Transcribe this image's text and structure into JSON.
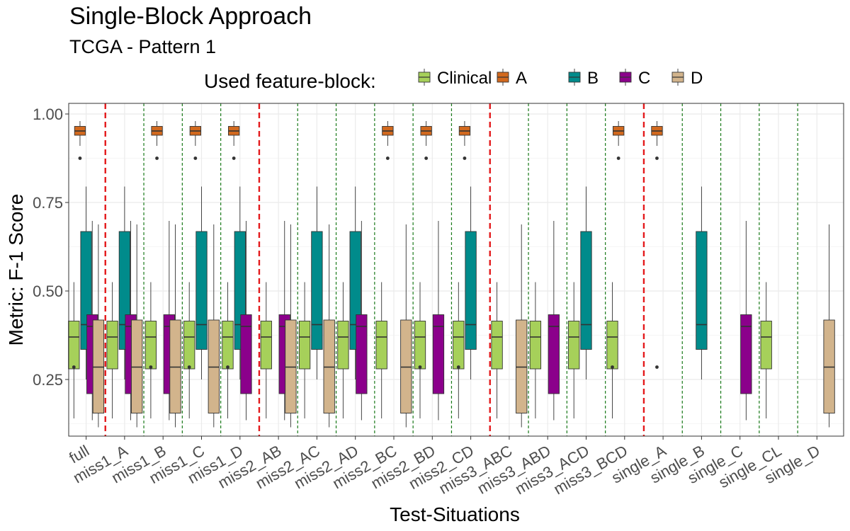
{
  "chart_data": {
    "type": "boxplot",
    "title": "Single-Block Approach",
    "subtitle": "TCGA - Pattern 1",
    "xlabel": "Test-Situations",
    "ylabel": "Metric: F-1 Score",
    "ylim": [
      0.09,
      1.03
    ],
    "yticks": [
      "0.25",
      "0.50",
      "0.75",
      "1.00"
    ],
    "ytick_values": [
      0.25,
      0.5,
      0.75,
      1.0
    ],
    "legend_title": "Used feature-block:",
    "legend_position": "top",
    "grid": true,
    "blocks": [
      {
        "name": "Clinical",
        "color": "#a6d05a"
      },
      {
        "name": "A",
        "color": "#d2691e"
      },
      {
        "name": "B",
        "color": "#008b8b"
      },
      {
        "name": "C",
        "color": "#8b008b"
      },
      {
        "name": "D",
        "color": "#d2b48c"
      }
    ],
    "categories": [
      "full",
      "miss1_A",
      "miss1_B",
      "miss1_C",
      "miss1_D",
      "miss2_AB",
      "miss2_AC",
      "miss2_AD",
      "miss2_BC",
      "miss2_BD",
      "miss2_CD",
      "miss3_ABC",
      "miss3_ABD",
      "miss3_ACD",
      "miss3_BCD",
      "single_A",
      "single_B",
      "single_C",
      "single_CL",
      "single_D"
    ],
    "available_blocks": [
      [
        "Clinical",
        "A",
        "B",
        "C",
        "D"
      ],
      [
        "Clinical",
        "B",
        "C",
        "D"
      ],
      [
        "Clinical",
        "A",
        "C",
        "D"
      ],
      [
        "Clinical",
        "A",
        "B",
        "D"
      ],
      [
        "Clinical",
        "A",
        "B",
        "C"
      ],
      [
        "Clinical",
        "C",
        "D"
      ],
      [
        "Clinical",
        "B",
        "D"
      ],
      [
        "Clinical",
        "B",
        "C"
      ],
      [
        "Clinical",
        "A",
        "D"
      ],
      [
        "Clinical",
        "A",
        "C"
      ],
      [
        "Clinical",
        "A",
        "B"
      ],
      [
        "Clinical",
        "D"
      ],
      [
        "Clinical",
        "C"
      ],
      [
        "Clinical",
        "B"
      ],
      [
        "Clinical",
        "A"
      ],
      [
        "A"
      ],
      [
        "B"
      ],
      [
        "C"
      ],
      [
        "Clinical"
      ],
      [
        "D"
      ]
    ],
    "box_stats": {
      "Clinical": {
        "min": 0.14,
        "q1": 0.28,
        "median": 0.37,
        "q3": 0.415,
        "max": 0.525,
        "outliers": []
      },
      "A": {
        "min": 0.91,
        "q1": 0.94,
        "median": 0.952,
        "q3": 0.965,
        "max": 0.98,
        "outliers": [
          0.875
        ]
      },
      "B": {
        "min": 0.25,
        "q1": 0.335,
        "median": 0.405,
        "q3": 0.668,
        "max": 0.795,
        "outliers": []
      },
      "C": {
        "min": 0.135,
        "q1": 0.21,
        "median": 0.4,
        "q3": 0.433,
        "max": 0.698,
        "outliers": []
      },
      "D": {
        "min": 0.115,
        "q1": 0.155,
        "median": 0.285,
        "q3": 0.418,
        "max": 0.688,
        "outliers": []
      }
    },
    "box_overrides": [
      {
        "situation": "full",
        "block": "Clinical",
        "outliers": [
          0.285
        ]
      },
      {
        "situation": "miss1_B",
        "block": "Clinical",
        "outliers": [
          0.285
        ]
      },
      {
        "situation": "miss1_C",
        "block": "Clinical",
        "outliers": [
          0.285
        ]
      },
      {
        "situation": "miss1_D",
        "block": "Clinical",
        "outliers": [
          0.285
        ]
      },
      {
        "situation": "miss2_BD",
        "block": "Clinical",
        "outliers": [
          0.285
        ]
      },
      {
        "situation": "miss2_CD",
        "block": "Clinical",
        "outliers": [
          0.285
        ]
      },
      {
        "situation": "miss3_BCD",
        "block": "Clinical",
        "outliers": [
          0.285
        ]
      },
      {
        "situation": "single_A",
        "block": "A",
        "outliers": [
          0.875,
          0.285
        ]
      }
    ],
    "red_separators_after": [
      "full",
      "miss1_D",
      "miss2_CD",
      "miss3_BCD"
    ],
    "green_separators_after": [
      "miss1_A",
      "miss1_B",
      "miss1_C",
      "miss2_AB",
      "miss2_AC",
      "miss2_AD",
      "miss2_BC",
      "miss2_BD",
      "miss3_ABC",
      "miss3_ABD",
      "miss3_ACD",
      "single_A",
      "single_B",
      "single_C",
      "single_CL"
    ],
    "separator_colors": {
      "red": "#e41a1c",
      "green": "#1a7a1a"
    }
  }
}
